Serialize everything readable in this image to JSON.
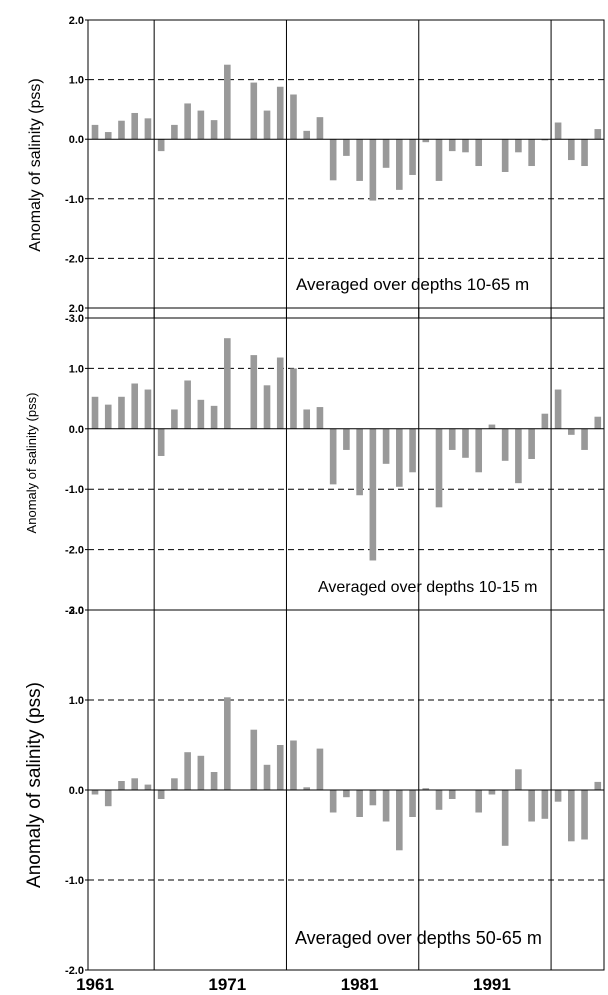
{
  "chart_data": [
    {
      "type": "bar",
      "ylabel": "Anomaly of salinity (pss)",
      "annotation": "Averaged over depths 10-65 m",
      "ylim": [
        -3.0,
        2.0
      ],
      "yticks": [
        "2.0",
        "1.0",
        "0.0",
        "-1.0",
        "-2.0",
        "-3.0"
      ],
      "x_start": 1961,
      "values": [
        0.24,
        0.12,
        0.31,
        0.44,
        0.35,
        -0.2,
        0.24,
        0.6,
        0.48,
        0.32,
        1.25,
        0.0,
        0.95,
        0.48,
        0.88,
        0.75,
        0.14,
        0.37,
        -0.69,
        -0.28,
        -0.7,
        -1.03,
        -0.48,
        -0.85,
        -0.6,
        -0.05,
        -0.7,
        -0.2,
        -0.22,
        -0.45,
        0.0,
        -0.55,
        -0.22,
        -0.45,
        -0.02,
        0.28,
        -0.35,
        -0.45,
        0.17
      ]
    },
    {
      "type": "bar",
      "ylabel": "Anomaly of salinity (pss)",
      "annotation": "Averaged over depths 10-15 m",
      "ylim": [
        -3.0,
        2.0
      ],
      "yticks": [
        "2.0",
        "1.0",
        "0.0",
        "-1.0",
        "-2.0",
        "-3.0"
      ],
      "x_start": 1961,
      "values": [
        0.53,
        0.4,
        0.53,
        0.75,
        0.65,
        -0.45,
        0.32,
        0.8,
        0.48,
        0.38,
        1.5,
        0.0,
        1.22,
        0.72,
        1.18,
        1.0,
        0.32,
        0.36,
        -0.92,
        -0.35,
        -1.1,
        -2.18,
        -0.58,
        -0.96,
        -0.72,
        0.0,
        -1.3,
        -0.35,
        -0.48,
        -0.72,
        0.07,
        -0.53,
        -0.9,
        -0.5,
        0.25,
        0.65,
        -0.1,
        -0.35,
        0.2
      ]
    },
    {
      "type": "bar",
      "ylabel": "Anomaly of salinity (pss)",
      "annotation": "Averaged over depths 50-65 m",
      "ylim": [
        -2.0,
        2.0
      ],
      "yticks": [
        "2.0",
        "1.0",
        "0.0",
        "-1.0",
        "-2.0"
      ],
      "x_start": 1961,
      "values": [
        -0.05,
        -0.18,
        0.1,
        0.13,
        0.06,
        -0.1,
        0.13,
        0.42,
        0.38,
        0.2,
        1.03,
        0.0,
        0.67,
        0.28,
        0.5,
        0.55,
        0.03,
        0.46,
        -0.25,
        -0.08,
        -0.3,
        -0.17,
        -0.35,
        -0.67,
        -0.3,
        0.02,
        -0.22,
        -0.1,
        0.0,
        -0.25,
        -0.05,
        -0.62,
        0.23,
        -0.35,
        -0.32,
        -0.13,
        -0.57,
        -0.55,
        0.09
      ]
    }
  ],
  "x_tick_labels": [
    "1961",
    "1971",
    "1981",
    "1991"
  ]
}
